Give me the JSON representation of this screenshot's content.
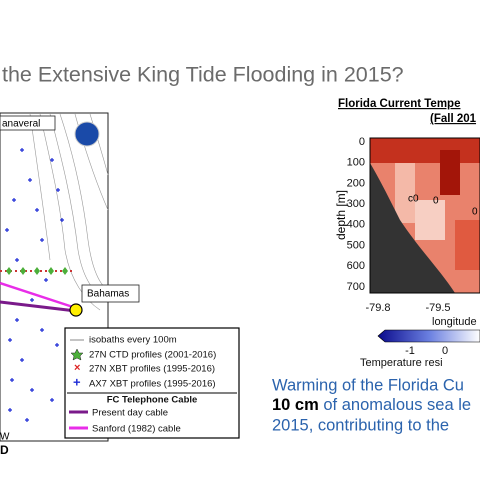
{
  "header": {
    "title": "the Extensive King Tide Flooding in 2015?"
  },
  "map": {
    "place_top": "anaveral",
    "place_bahamas": "Bahamas",
    "corner_bottom_1": "W",
    "corner_bottom_2": "D",
    "legend": {
      "items": [
        "isobaths every 100m",
        "27N CTD profiles (2001-2016)",
        "27N XBT profiles (1995-2016)",
        "AX7 XBT profiles (1995-2016)"
      ],
      "cable_heading": "FC Telephone Cable",
      "cables": [
        "Present day cable",
        "Sanford (1982) cable"
      ]
    }
  },
  "section": {
    "title_1": "Florida Current Tempe",
    "title_2": "(Fall 201",
    "y_label": "depth [m]",
    "y_ticks": [
      "0",
      "100",
      "200",
      "300",
      "400",
      "500",
      "600",
      "700"
    ],
    "x_ticks": [
      "-79.8",
      "-79.5"
    ],
    "x_label": "longitude",
    "contour_labels": [
      "c0",
      "0",
      "0"
    ],
    "colorbar_ticks": [
      "-1",
      "0"
    ],
    "colorbar_label": "Temperature resi"
  },
  "caption": {
    "line_1": "Warming of the Florida Cu",
    "line_2_bold": "10 cm",
    "line_2_rest": " of anomalous sea le",
    "line_3": "2015, contributing to the"
  }
}
